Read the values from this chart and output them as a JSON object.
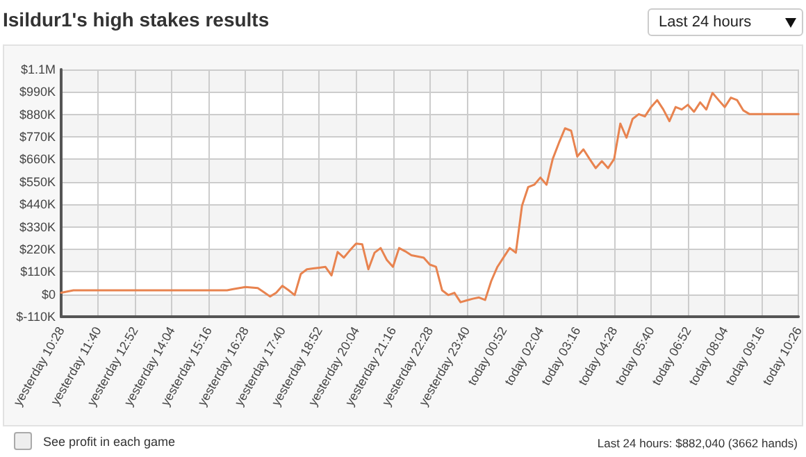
{
  "chart_data": {
    "type": "line",
    "title": "Isildur1's high stakes results",
    "annotations": [
      "Last 24 hours",
      "See profit in each game",
      "Last 24 hours: $882,040 (3662 hands)"
    ],
    "categories": [
      "yesterday 10:28",
      null,
      null,
      null,
      null,
      null,
      "yesterday 11:40",
      null,
      null,
      null,
      null,
      null,
      "yesterday 12:52",
      null,
      null,
      null,
      null,
      null,
      "yesterday 14:04",
      null,
      null,
      null,
      null,
      null,
      "yesterday 15:16",
      null,
      null,
      null,
      null,
      null,
      "yesterday 16:28",
      null,
      null,
      null,
      null,
      null,
      "yesterday 17:40",
      null,
      null,
      null,
      null,
      null,
      "yesterday 18:52",
      null,
      null,
      null,
      null,
      null,
      "yesterday 20:04",
      null,
      null,
      null,
      null,
      null,
      "yesterday 21:16",
      null,
      null,
      null,
      null,
      null,
      "yesterday 22:28",
      null,
      null,
      null,
      null,
      null,
      "yesterday 23:40",
      null,
      null,
      null,
      null,
      null,
      "today 00:52",
      null,
      null,
      null,
      null,
      null,
      "today 02:04",
      null,
      null,
      null,
      null,
      null,
      "today 03:16",
      null,
      null,
      null,
      null,
      null,
      "today 04:28",
      null,
      null,
      null,
      null,
      null,
      "today 05:40",
      null,
      null,
      null,
      null,
      null,
      "today 06:52",
      null,
      null,
      null,
      null,
      null,
      "today 08:04",
      null,
      null,
      null,
      null,
      null,
      "today 09:16",
      null,
      null,
      null,
      null,
      null,
      "today 10:26"
    ],
    "series": [
      {
        "color": "#e8834f",
        "values": [
          7000,
          13000,
          19000,
          19000,
          19000,
          19000,
          19000,
          19000,
          19000,
          19000,
          19000,
          19000,
          19000,
          19000,
          19000,
          19000,
          19000,
          19000,
          19000,
          19000,
          19000,
          19000,
          19000,
          19000,
          19000,
          19000,
          19000,
          19000,
          25000,
          30000,
          35000,
          33000,
          30000,
          10000,
          -11000,
          7000,
          41000,
          20000,
          -4000,
          99000,
          122000,
          126000,
          130000,
          134000,
          92000,
          207000,
          179000,
          215000,
          248000,
          244000,
          122000,
          203000,
          226000,
          168000,
          134000,
          226000,
          210000,
          191000,
          185000,
          179000,
          145000,
          134000,
          19000,
          -4000,
          7000,
          -39000,
          -30000,
          -22000,
          -16000,
          -28000,
          65000,
          134000,
          180000,
          226000,
          203000,
          433000,
          524000,
          536000,
          571000,
          536000,
          662000,
          740000,
          812000,
          800000,
          674000,
          709000,
          662000,
          617000,
          651000,
          617000,
          662000,
          835000,
          766000,
          858000,
          881000,
          870000,
          916000,
          950000,
          904000,
          847000,
          916000,
          904000,
          927000,
          893000,
          939000,
          904000,
          985000,
          950000,
          916000,
          962000,
          950000,
          900000,
          882000,
          882000,
          882000,
          882000,
          882000,
          882000,
          882000,
          882000,
          882000
        ]
      }
    ],
    "ylim": [
      -110000,
      1100000
    ],
    "yticks": [
      {
        "value": -110000,
        "label": "$-110K"
      },
      {
        "value": 0,
        "label": "$0"
      },
      {
        "value": 110000,
        "label": "$110K"
      },
      {
        "value": 220000,
        "label": "$220K"
      },
      {
        "value": 330000,
        "label": "$330K"
      },
      {
        "value": 440000,
        "label": "$440K"
      },
      {
        "value": 550000,
        "label": "$550K"
      },
      {
        "value": 660000,
        "label": "$660K"
      },
      {
        "value": 770000,
        "label": "$770K"
      },
      {
        "value": 880000,
        "label": "$880K"
      },
      {
        "value": 990000,
        "label": "$990K"
      },
      {
        "value": 1100000,
        "label": "$1.1M"
      }
    ],
    "grid": true,
    "marker": "none",
    "line_style": "solid"
  }
}
